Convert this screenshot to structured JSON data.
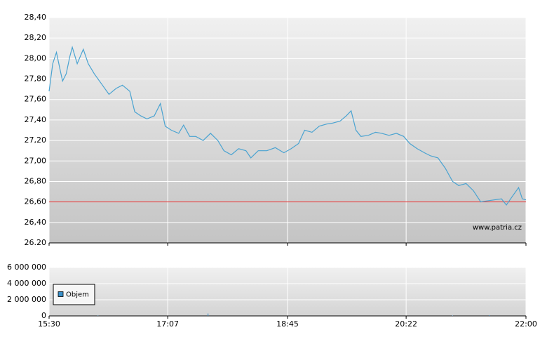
{
  "chart_data": [
    {
      "type": "line",
      "watermark": "www.patria.cz",
      "reference_line": 26.6,
      "reference_color": "#e03030",
      "grid": true,
      "xlim": [
        "15:30",
        "22:00"
      ],
      "ylim": [
        26.2,
        28.4
      ],
      "yticks": [
        {
          "value": 26.2,
          "label": "26.20"
        },
        {
          "value": 26.4,
          "label": "26,40"
        },
        {
          "value": 26.6,
          "label": "26,60"
        },
        {
          "value": 26.8,
          "label": "26,80"
        },
        {
          "value": 27.0,
          "label": "27,00"
        },
        {
          "value": 27.2,
          "label": "27,20"
        },
        {
          "value": 27.4,
          "label": "27,40"
        },
        {
          "value": 27.6,
          "label": "27,60"
        },
        {
          "value": 27.8,
          "label": "27,80"
        },
        {
          "value": 28.0,
          "label": "28,00"
        },
        {
          "value": 28.2,
          "label": "28,20"
        },
        {
          "value": 28.4,
          "label": "28,40"
        }
      ],
      "series": [
        {
          "color": "#4aa3d1",
          "x": [
            "15:30",
            "15:33",
            "15:36",
            "15:39",
            "15:41",
            "15:44",
            "15:47",
            "15:49",
            "15:53",
            "15:58",
            "16:02",
            "16:07",
            "16:13",
            "16:19",
            "16:25",
            "16:30",
            "16:36",
            "16:40",
            "16:45",
            "16:50",
            "16:56",
            "17:01",
            "17:05",
            "17:10",
            "17:16",
            "17:20",
            "17:25",
            "17:30",
            "17:36",
            "17:42",
            "17:48",
            "17:53",
            "17:59",
            "18:05",
            "18:11",
            "18:15",
            "18:21",
            "18:28",
            "18:35",
            "18:42",
            "18:48",
            "18:54",
            "18:59",
            "19:05",
            "19:11",
            "19:17",
            "19:22",
            "19:28",
            "19:33",
            "19:37",
            "19:41",
            "19:45",
            "19:51",
            "19:57",
            "20:02",
            "20:08",
            "20:14",
            "20:20",
            "20:25",
            "20:31",
            "20:37",
            "20:42",
            "20:48",
            "20:54",
            "21:00",
            "21:05",
            "21:11",
            "21:17",
            "21:23",
            "21:28",
            "21:34",
            "21:40",
            "21:44",
            "21:48",
            "21:54",
            "21:57",
            "22:00"
          ],
          "values": [
            27.68,
            27.95,
            28.06,
            27.89,
            27.78,
            27.85,
            28.02,
            28.11,
            27.95,
            28.09,
            27.95,
            27.85,
            27.75,
            27.65,
            27.71,
            27.74,
            27.68,
            27.48,
            27.44,
            27.41,
            27.44,
            27.56,
            27.34,
            27.3,
            27.27,
            27.35,
            27.24,
            27.24,
            27.2,
            27.27,
            27.2,
            27.1,
            27.06,
            27.12,
            27.1,
            27.03,
            27.1,
            27.1,
            27.13,
            27.08,
            27.12,
            27.17,
            27.3,
            27.28,
            27.34,
            27.36,
            27.37,
            27.39,
            27.44,
            27.49,
            27.3,
            27.24,
            27.25,
            27.28,
            27.27,
            27.25,
            27.27,
            27.24,
            27.17,
            27.12,
            27.08,
            27.05,
            27.03,
            26.93,
            26.8,
            26.76,
            26.78,
            26.71,
            26.6,
            26.61,
            26.62,
            26.63,
            26.57,
            26.64,
            26.74,
            26.63,
            26.62
          ]
        }
      ]
    },
    {
      "type": "bar",
      "legend": "lower left",
      "grid": true,
      "xlim": [
        "15:30",
        "22:00"
      ],
      "xticks": [
        "15:30",
        "17:07",
        "18:45",
        "20:22",
        "22:00"
      ],
      "ylim": [
        0,
        6000000
      ],
      "yticks": [
        {
          "value": 0,
          "label": "0"
        },
        {
          "value": 2000000,
          "label": "2 000 000"
        },
        {
          "value": 4000000,
          "label": "4 000 000"
        },
        {
          "value": 6000000,
          "label": "6 000 000"
        }
      ],
      "series": [
        {
          "name": "Objem",
          "color": "#3a8fc8",
          "x": [
            "16:10",
            "17:40",
            "21:00",
            "21:30"
          ],
          "values": [
            50000,
            300000,
            50000,
            80000
          ]
        }
      ]
    }
  ]
}
